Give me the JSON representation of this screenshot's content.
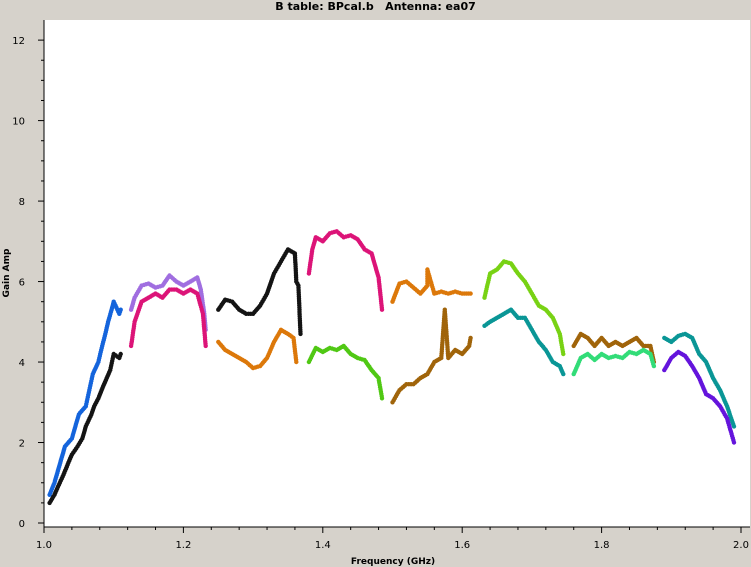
{
  "chart_data": {
    "type": "scatter",
    "title": "B table: BPcal.b   Antenna: ea07",
    "xlabel": "Frequency (GHz)",
    "ylabel": "Gain Amp",
    "xlim": [
      1.0,
      2.0
    ],
    "ylim": [
      0,
      12.5
    ],
    "xticks": [
      "1.0",
      "1.2",
      "1.4",
      "1.6",
      "1.8",
      "2.0"
    ],
    "yticks": [
      "0",
      "2",
      "4",
      "6",
      "8",
      "10",
      "12"
    ],
    "grid": false,
    "series": [
      {
        "color": "#1464dc",
        "points": [
          [
            1.008,
            0.7
          ],
          [
            1.015,
            1.0
          ],
          [
            1.02,
            1.3
          ],
          [
            1.025,
            1.6
          ],
          [
            1.03,
            1.9
          ],
          [
            1.04,
            2.1
          ],
          [
            1.045,
            2.4
          ],
          [
            1.05,
            2.7
          ],
          [
            1.06,
            2.9
          ],
          [
            1.065,
            3.3
          ],
          [
            1.07,
            3.7
          ],
          [
            1.078,
            4.0
          ],
          [
            1.082,
            4.3
          ],
          [
            1.088,
            4.7
          ],
          [
            1.092,
            5.0
          ],
          [
            1.097,
            5.3
          ],
          [
            1.1,
            5.5
          ],
          [
            1.108,
            5.2
          ],
          [
            1.11,
            5.3
          ]
        ]
      },
      {
        "color": "#141414",
        "points": [
          [
            1.008,
            0.5
          ],
          [
            1.015,
            0.7
          ],
          [
            1.02,
            0.9
          ],
          [
            1.028,
            1.2
          ],
          [
            1.035,
            1.5
          ],
          [
            1.04,
            1.7
          ],
          [
            1.048,
            1.9
          ],
          [
            1.055,
            2.1
          ],
          [
            1.06,
            2.4
          ],
          [
            1.068,
            2.7
          ],
          [
            1.072,
            2.9
          ],
          [
            1.078,
            3.1
          ],
          [
            1.085,
            3.4
          ],
          [
            1.09,
            3.6
          ],
          [
            1.095,
            3.8
          ],
          [
            1.1,
            4.2
          ],
          [
            1.108,
            4.1
          ],
          [
            1.11,
            4.2
          ]
        ]
      },
      {
        "color": "#a06ee0",
        "points": [
          [
            1.125,
            5.3
          ],
          [
            1.13,
            5.6
          ],
          [
            1.14,
            5.9
          ],
          [
            1.15,
            5.95
          ],
          [
            1.16,
            5.85
          ],
          [
            1.17,
            5.9
          ],
          [
            1.18,
            6.15
          ],
          [
            1.19,
            6.0
          ],
          [
            1.2,
            5.9
          ],
          [
            1.21,
            6.0
          ],
          [
            1.22,
            6.1
          ],
          [
            1.225,
            5.8
          ],
          [
            1.23,
            5.2
          ],
          [
            1.232,
            4.8
          ]
        ]
      },
      {
        "color": "#dc1478",
        "points": [
          [
            1.125,
            4.4
          ],
          [
            1.13,
            5.0
          ],
          [
            1.14,
            5.5
          ],
          [
            1.15,
            5.6
          ],
          [
            1.16,
            5.7
          ],
          [
            1.17,
            5.6
          ],
          [
            1.18,
            5.8
          ],
          [
            1.19,
            5.8
          ],
          [
            1.2,
            5.7
          ],
          [
            1.21,
            5.8
          ],
          [
            1.22,
            5.7
          ],
          [
            1.228,
            5.2
          ],
          [
            1.232,
            4.4
          ]
        ]
      },
      {
        "color": "#141414",
        "points": [
          [
            1.25,
            5.3
          ],
          [
            1.26,
            5.55
          ],
          [
            1.27,
            5.5
          ],
          [
            1.28,
            5.3
          ],
          [
            1.29,
            5.2
          ],
          [
            1.3,
            5.2
          ],
          [
            1.31,
            5.4
          ],
          [
            1.32,
            5.7
          ],
          [
            1.33,
            6.2
          ],
          [
            1.34,
            6.5
          ],
          [
            1.35,
            6.8
          ],
          [
            1.36,
            6.7
          ],
          [
            1.362,
            6.0
          ],
          [
            1.365,
            5.9
          ],
          [
            1.368,
            4.7
          ]
        ]
      },
      {
        "color": "#dc780a",
        "points": [
          [
            1.25,
            4.5
          ],
          [
            1.26,
            4.3
          ],
          [
            1.27,
            4.2
          ],
          [
            1.28,
            4.1
          ],
          [
            1.29,
            4.0
          ],
          [
            1.3,
            3.85
          ],
          [
            1.31,
            3.9
          ],
          [
            1.32,
            4.1
          ],
          [
            1.33,
            4.5
          ],
          [
            1.34,
            4.8
          ],
          [
            1.35,
            4.7
          ],
          [
            1.358,
            4.6
          ],
          [
            1.362,
            4.0
          ]
        ]
      },
      {
        "color": "#dc1478",
        "points": [
          [
            1.38,
            6.2
          ],
          [
            1.385,
            6.8
          ],
          [
            1.39,
            7.1
          ],
          [
            1.4,
            7.0
          ],
          [
            1.41,
            7.2
          ],
          [
            1.42,
            7.25
          ],
          [
            1.43,
            7.1
          ],
          [
            1.44,
            7.15
          ],
          [
            1.45,
            7.05
          ],
          [
            1.46,
            6.8
          ],
          [
            1.47,
            6.7
          ],
          [
            1.475,
            6.4
          ],
          [
            1.48,
            6.1
          ],
          [
            1.485,
            5.3
          ]
        ]
      },
      {
        "color": "#50c814",
        "points": [
          [
            1.38,
            4.0
          ],
          [
            1.39,
            4.35
          ],
          [
            1.4,
            4.25
          ],
          [
            1.41,
            4.35
          ],
          [
            1.42,
            4.3
          ],
          [
            1.43,
            4.4
          ],
          [
            1.44,
            4.2
          ],
          [
            1.45,
            4.1
          ],
          [
            1.46,
            4.05
          ],
          [
            1.47,
            3.8
          ],
          [
            1.48,
            3.6
          ],
          [
            1.485,
            3.1
          ]
        ]
      },
      {
        "color": "#dc780a",
        "points": [
          [
            1.5,
            5.5
          ],
          [
            1.51,
            5.95
          ],
          [
            1.52,
            6.0
          ],
          [
            1.53,
            5.85
          ],
          [
            1.54,
            5.7
          ],
          [
            1.55,
            5.9
          ],
          [
            1.55,
            6.3
          ],
          [
            1.56,
            5.7
          ],
          [
            1.57,
            5.75
          ],
          [
            1.58,
            5.7
          ],
          [
            1.59,
            5.75
          ],
          [
            1.6,
            5.7
          ],
          [
            1.612,
            5.7
          ]
        ]
      },
      {
        "color": "#a0640a",
        "points": [
          [
            1.5,
            3.0
          ],
          [
            1.51,
            3.3
          ],
          [
            1.52,
            3.45
          ],
          [
            1.53,
            3.45
          ],
          [
            1.54,
            3.6
          ],
          [
            1.55,
            3.7
          ],
          [
            1.56,
            4.0
          ],
          [
            1.57,
            4.1
          ],
          [
            1.575,
            5.3
          ],
          [
            1.58,
            4.1
          ],
          [
            1.59,
            4.3
          ],
          [
            1.6,
            4.2
          ],
          [
            1.61,
            4.4
          ],
          [
            1.612,
            4.6
          ]
        ]
      },
      {
        "color": "#78d214",
        "points": [
          [
            1.632,
            5.6
          ],
          [
            1.64,
            6.2
          ],
          [
            1.65,
            6.3
          ],
          [
            1.66,
            6.5
          ],
          [
            1.67,
            6.45
          ],
          [
            1.68,
            6.2
          ],
          [
            1.69,
            6.0
          ],
          [
            1.7,
            5.7
          ],
          [
            1.71,
            5.4
          ],
          [
            1.72,
            5.3
          ],
          [
            1.73,
            5.1
          ],
          [
            1.74,
            4.7
          ],
          [
            1.745,
            4.2
          ]
        ]
      },
      {
        "color": "#0a9696",
        "points": [
          [
            1.632,
            4.9
          ],
          [
            1.64,
            5.0
          ],
          [
            1.65,
            5.1
          ],
          [
            1.66,
            5.2
          ],
          [
            1.67,
            5.3
          ],
          [
            1.68,
            5.1
          ],
          [
            1.69,
            5.1
          ],
          [
            1.7,
            4.8
          ],
          [
            1.71,
            4.5
          ],
          [
            1.72,
            4.3
          ],
          [
            1.73,
            4.0
          ],
          [
            1.74,
            3.9
          ],
          [
            1.745,
            3.7
          ]
        ]
      },
      {
        "color": "#a0640a",
        "points": [
          [
            1.76,
            4.4
          ],
          [
            1.77,
            4.7
          ],
          [
            1.78,
            4.6
          ],
          [
            1.79,
            4.4
          ],
          [
            1.8,
            4.6
          ],
          [
            1.81,
            4.4
          ],
          [
            1.82,
            4.5
          ],
          [
            1.83,
            4.4
          ],
          [
            1.84,
            4.5
          ],
          [
            1.85,
            4.6
          ],
          [
            1.86,
            4.4
          ],
          [
            1.87,
            4.4
          ],
          [
            1.875,
            4.0
          ]
        ]
      },
      {
        "color": "#32dc78",
        "points": [
          [
            1.76,
            3.7
          ],
          [
            1.77,
            4.1
          ],
          [
            1.78,
            4.2
          ],
          [
            1.79,
            4.05
          ],
          [
            1.8,
            4.2
          ],
          [
            1.81,
            4.1
          ],
          [
            1.82,
            4.15
          ],
          [
            1.83,
            4.1
          ],
          [
            1.84,
            4.25
          ],
          [
            1.85,
            4.2
          ],
          [
            1.86,
            4.3
          ],
          [
            1.87,
            4.2
          ],
          [
            1.875,
            3.9
          ]
        ]
      },
      {
        "color": "#0a9696",
        "points": [
          [
            1.89,
            4.6
          ],
          [
            1.9,
            4.5
          ],
          [
            1.91,
            4.65
          ],
          [
            1.92,
            4.7
          ],
          [
            1.93,
            4.6
          ],
          [
            1.94,
            4.2
          ],
          [
            1.95,
            4.0
          ],
          [
            1.96,
            3.6
          ],
          [
            1.97,
            3.3
          ],
          [
            1.98,
            2.9
          ],
          [
            1.99,
            2.4
          ]
        ]
      },
      {
        "color": "#6414dc",
        "points": [
          [
            1.89,
            3.8
          ],
          [
            1.9,
            4.1
          ],
          [
            1.91,
            4.25
          ],
          [
            1.92,
            4.15
          ],
          [
            1.93,
            3.9
          ],
          [
            1.94,
            3.6
          ],
          [
            1.95,
            3.2
          ],
          [
            1.96,
            3.1
          ],
          [
            1.97,
            2.9
          ],
          [
            1.98,
            2.6
          ],
          [
            1.99,
            2.0
          ]
        ]
      }
    ]
  }
}
